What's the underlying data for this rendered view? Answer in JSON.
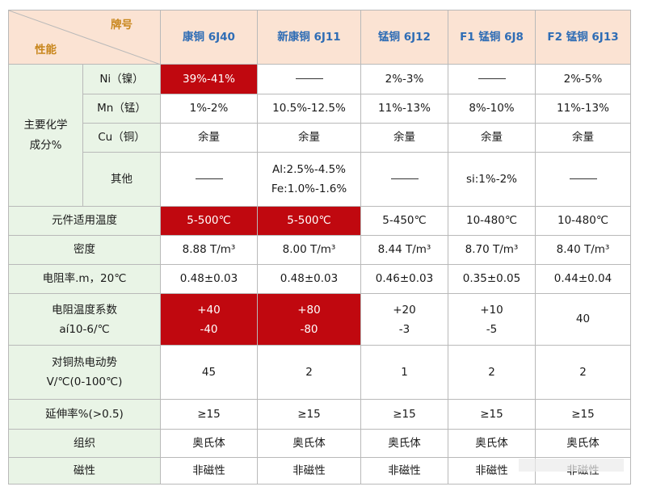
{
  "header": {
    "corner_top": "牌号",
    "corner_bottom": "性能",
    "alloys": [
      "康铜 6J40",
      "新康铜 6J11",
      "锰铜 6J12",
      "F1 锰铜 6J8",
      "F2 锰铜 6J13"
    ]
  },
  "group": {
    "line1": "主要化学",
    "line2": "成分%"
  },
  "rows": {
    "ni": {
      "label": "Ni（镍）",
      "v": [
        "39%-41%",
        "",
        "2%-3%",
        "",
        "2%-5%"
      ]
    },
    "mn": {
      "label": "Mn（锰）",
      "v": [
        "1%-2%",
        "10.5%-12.5%",
        "11%-13%",
        "8%-10%",
        "11%-13%"
      ]
    },
    "cu": {
      "label": "Cu（铜）",
      "v": [
        "余量",
        "余量",
        "余量",
        "余量",
        "余量"
      ]
    },
    "other": {
      "label": "其他",
      "v1": "Al:2.5%-4.5%",
      "v2": "Fe:1.0%-1.6%",
      "v3": "si:1%-2%"
    },
    "temp": {
      "label": "元件适用温度",
      "v": [
        "5-500℃",
        "5-500℃",
        "5-450℃",
        "10-480℃",
        "10-480℃"
      ]
    },
    "density": {
      "label": "密度",
      "v": [
        "8.88  T/m³",
        "8.00  T/m³",
        "8.44  T/m³",
        "8.70  T/m³",
        "8.40  T/m³"
      ]
    },
    "resist": {
      "label": "电阻率.m，20℃",
      "v": [
        "0.48±0.03",
        "0.48±0.03",
        "0.46±0.03",
        "0.35±0.05",
        "0.44±0.04"
      ]
    },
    "coef": {
      "label1": "电阻温度系数",
      "label2": "aí10-6/℃",
      "top": [
        "+40",
        "+80",
        "+20",
        "+10"
      ],
      "bottom": [
        "-40",
        "-80",
        "-3",
        "-5"
      ],
      "last": "40"
    },
    "emf": {
      "label1": "对铜热电动势",
      "label2": "V/℃(0-100℃)",
      "v": [
        "45",
        "2",
        "1",
        "2",
        "2"
      ]
    },
    "elong": {
      "label": "延伸率%(>0.5)",
      "v": [
        "≥15",
        "≥15",
        "≥15",
        "≥15",
        "≥15"
      ]
    },
    "struct": {
      "label": "组织",
      "v": [
        "奥氏体",
        "奥氏体",
        "奥氏体",
        "奥氏体",
        "奥氏体"
      ]
    },
    "magnet": {
      "label": "磁性",
      "v": [
        "非磁性",
        "非磁性",
        "非磁性",
        "非磁性",
        "非磁性"
      ]
    }
  },
  "colors": {
    "header_bg": "#fbe3d3",
    "label_bg": "#e9f4e6",
    "highlight": "#c0080f",
    "header_text": "#2f6db5",
    "corner_text": "#c8861c"
  }
}
